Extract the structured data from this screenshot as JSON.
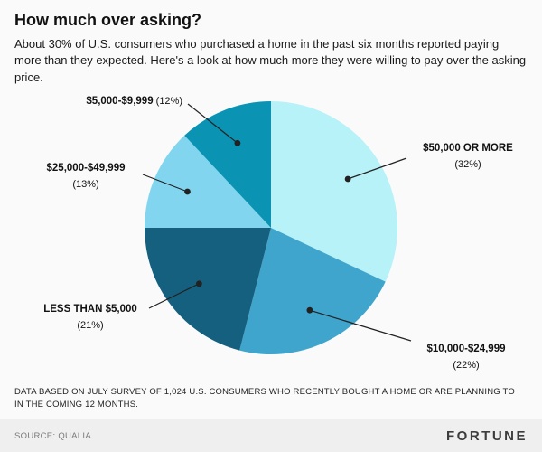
{
  "header": {
    "title": "How much over asking?",
    "subtitle": "About 30% of U.S. consumers who purchased a home in the past six months reported paying more than they expected. Here's a look at how much more they were willing to pay over the asking price."
  },
  "chart_data": {
    "type": "pie",
    "title": "How much over asking?",
    "start_angle_deg": 0,
    "direction": "clockwise",
    "slices": [
      {
        "label": "$50,000 OR MORE",
        "pct": 32,
        "color": "#b7f2f9"
      },
      {
        "label": "$10,000-$24,999",
        "pct": 22,
        "color": "#3fa5cc"
      },
      {
        "label": "LESS THAN $5,000",
        "pct": 21,
        "color": "#16607f"
      },
      {
        "label": "$25,000-$49,999",
        "pct": 13,
        "color": "#82d5ef"
      },
      {
        "label": "$5,000-$9,999",
        "pct": 12,
        "color": "#0b93b4"
      }
    ],
    "callout_dot_color": "#222222",
    "legend_position": "callouts"
  },
  "footer": {
    "note": "DATA BASED ON JULY SURVEY OF 1,024 U.S. CONSUMERS WHO RECENTLY BOUGHT A HOME OR ARE PLANNING TO IN THE COMING 12 MONTHS.",
    "source": "SOURCE: QUALIA",
    "brand": "FORTUNE"
  }
}
